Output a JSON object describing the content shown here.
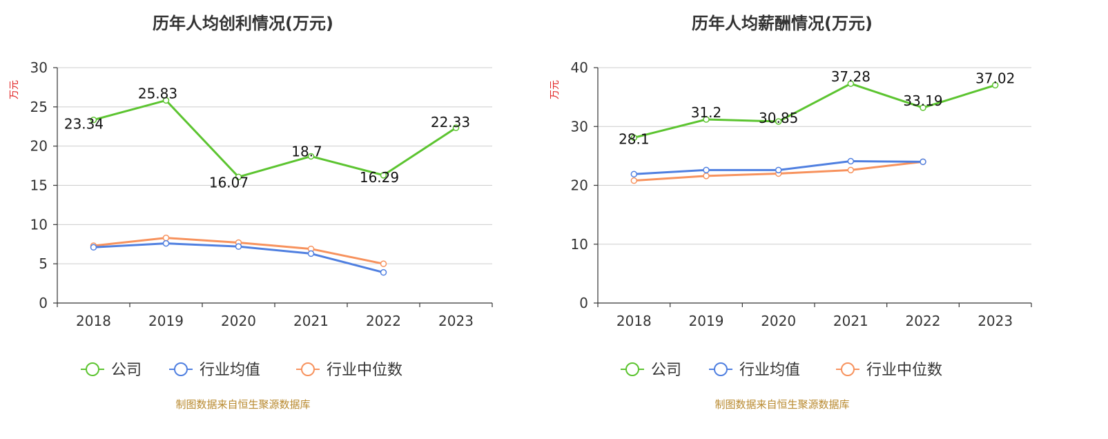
{
  "source_note": "制图数据来自恒生聚源数据库",
  "colors": {
    "company": "#5cc430",
    "industry_avg": "#4f7fe0",
    "industry_median": "#f7925d",
    "unit": "#e02020",
    "source": "#b8892e",
    "title": "#333333"
  },
  "chart_data": [
    {
      "type": "line",
      "title": "历年人均创利情况(万元)",
      "ylabel": "万元",
      "ylim": [
        0,
        30
      ],
      "yticks": [
        0,
        5,
        10,
        15,
        20,
        25,
        30
      ],
      "categories": [
        "2018",
        "2019",
        "2020",
        "2021",
        "2022",
        "2023"
      ],
      "grid": true,
      "legend_position": "bottom",
      "series": [
        {
          "name": "公司",
          "color_key": "company",
          "values": [
            23.34,
            25.83,
            16.07,
            18.7,
            16.29,
            22.33
          ],
          "labels": [
            "23.34",
            "25.83",
            "16.07",
            "18.7",
            "16.29",
            "22.33"
          ]
        },
        {
          "name": "行业均值",
          "color_key": "industry_avg",
          "values": [
            7.1,
            7.6,
            7.2,
            6.3,
            3.9,
            null
          ]
        },
        {
          "name": "行业中位数",
          "color_key": "industry_median",
          "values": [
            7.3,
            8.3,
            7.7,
            6.9,
            5.0,
            null
          ]
        }
      ]
    },
    {
      "type": "line",
      "title": "历年人均薪酬情况(万元)",
      "ylabel": "万元",
      "ylim": [
        0,
        40
      ],
      "yticks": [
        0,
        10,
        20,
        30,
        40
      ],
      "categories": [
        "2018",
        "2019",
        "2020",
        "2021",
        "2022",
        "2023"
      ],
      "grid": true,
      "legend_position": "bottom",
      "series": [
        {
          "name": "公司",
          "color_key": "company",
          "values": [
            28.1,
            31.2,
            30.85,
            37.28,
            33.19,
            37.02
          ],
          "labels": [
            "28.1",
            "31.2",
            "30.85",
            "37.28",
            "33.19",
            "37.02"
          ]
        },
        {
          "name": "行业均值",
          "color_key": "industry_avg",
          "values": [
            21.9,
            22.6,
            22.6,
            24.1,
            24.0,
            null
          ]
        },
        {
          "name": "行业中位数",
          "color_key": "industry_median",
          "values": [
            20.8,
            21.6,
            22.0,
            22.6,
            24.0,
            null
          ]
        }
      ]
    }
  ]
}
